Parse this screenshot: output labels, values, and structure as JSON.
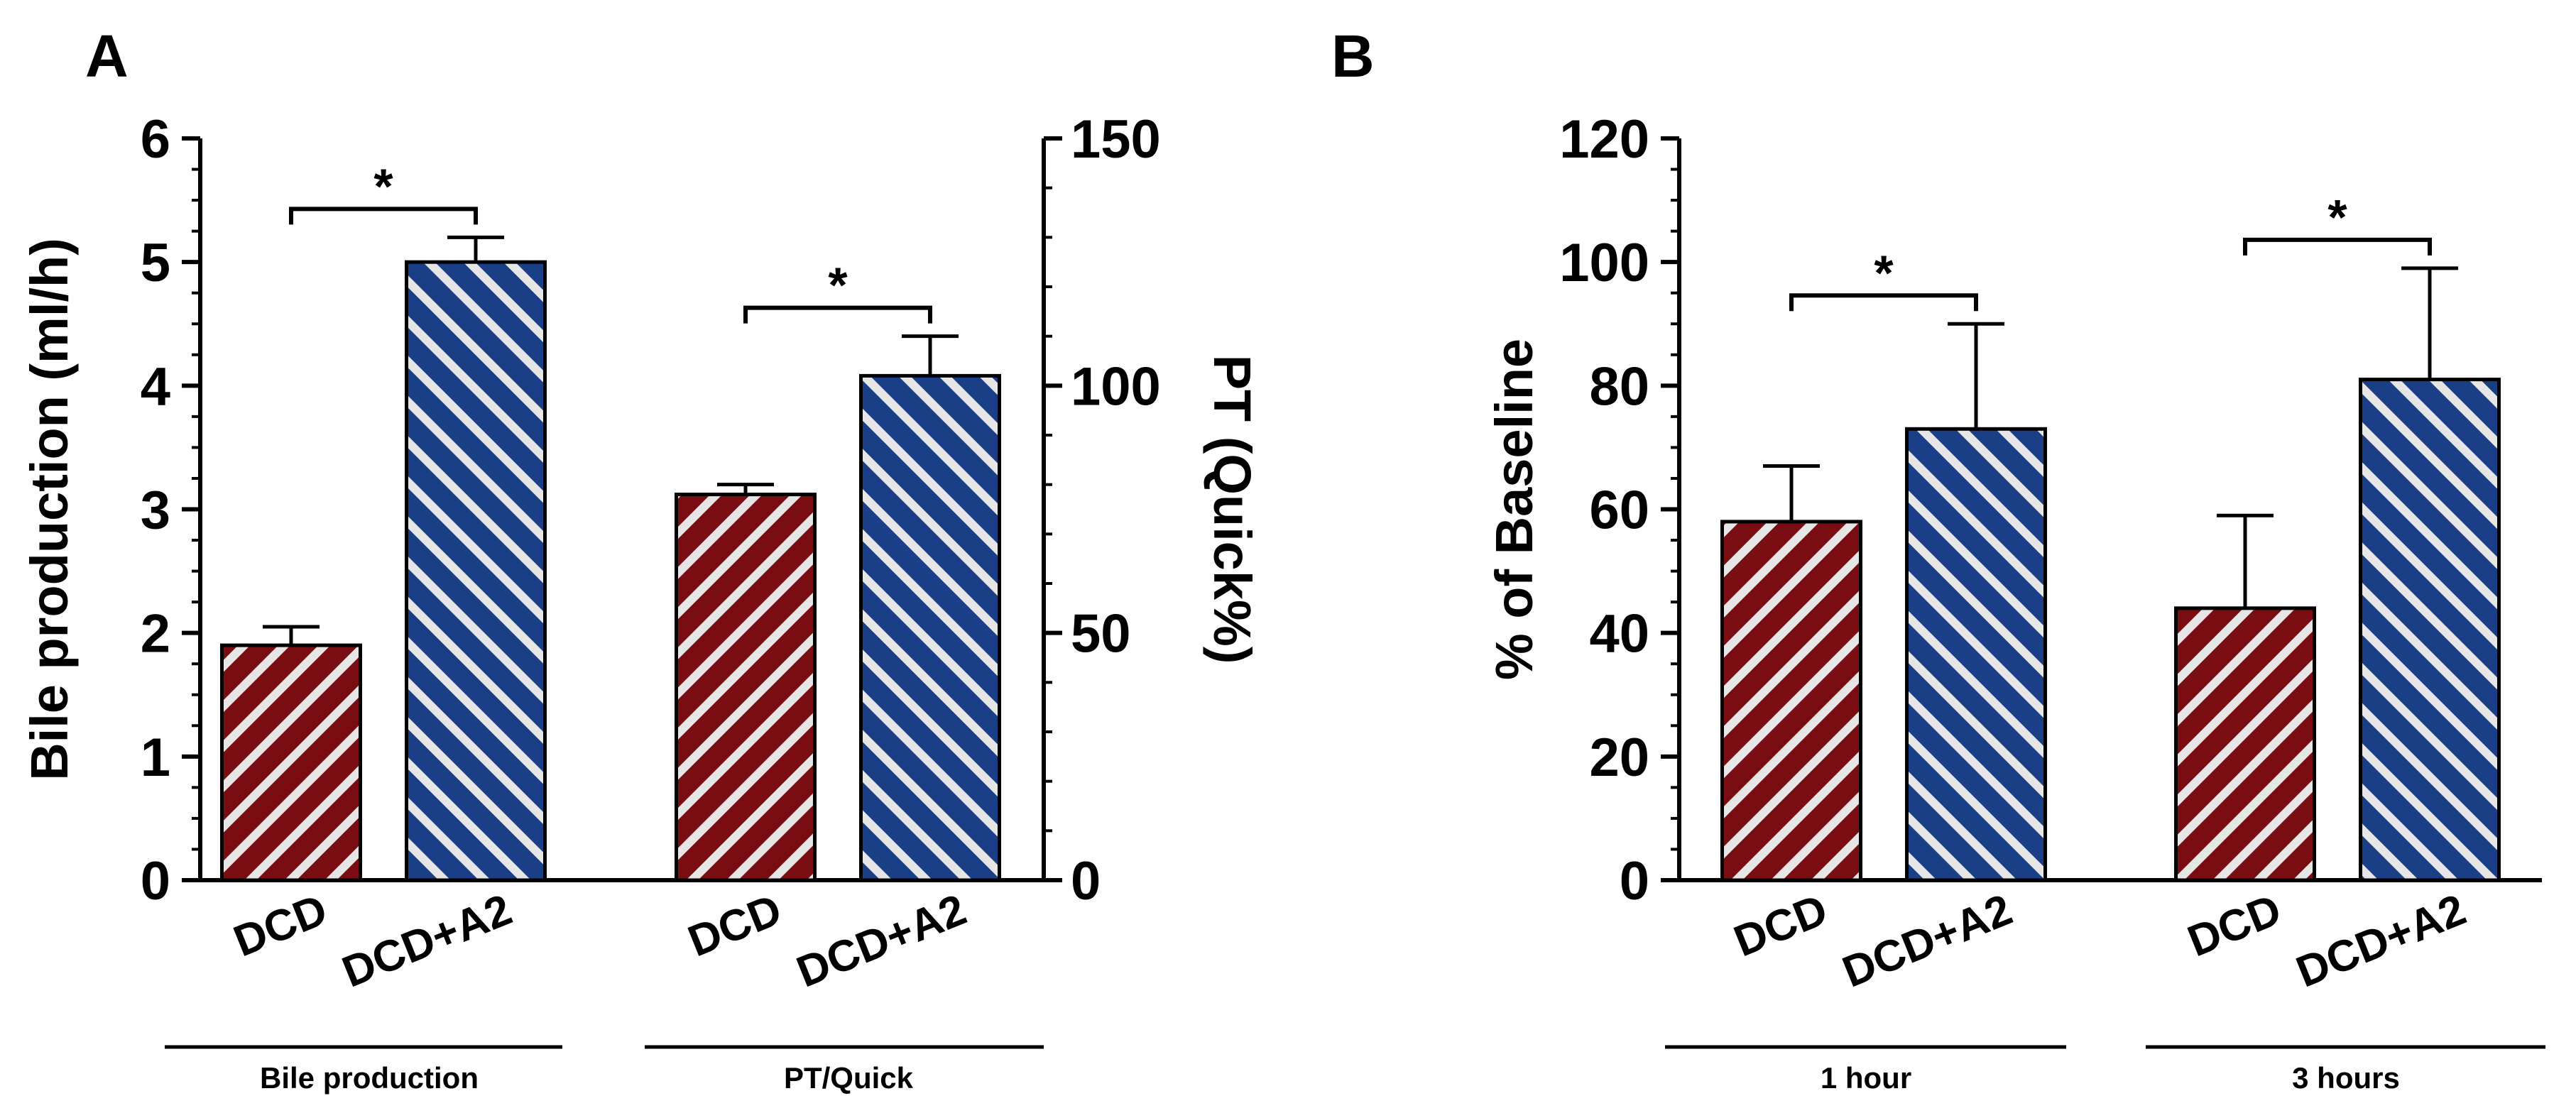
{
  "colors": {
    "dcd": "#7a0d12",
    "dcd_a2": "#1b3f86",
    "stripe": "#e6e6e6",
    "axis": "#000000"
  },
  "chart_data": [
    {
      "panel": "A",
      "type": "bar",
      "groups": [
        "Bile production",
        "PT/Quick"
      ],
      "categories": [
        "DCD",
        "DCD+A2"
      ],
      "ylabel": "Bile production (ml/h)",
      "ylim": [
        0,
        6
      ],
      "yticks": [
        "0",
        "1",
        "2",
        "3",
        "4",
        "5",
        "6"
      ],
      "ylabel_right": "PT (Quick%)",
      "ylim_right": [
        0,
        150
      ],
      "yticks_right": [
        "0",
        "50",
        "100",
        "150"
      ],
      "bars": [
        {
          "group": "Bile production",
          "category": "DCD",
          "value": 1.9,
          "error": 0.15,
          "axis": "left"
        },
        {
          "group": "Bile production",
          "category": "DCD+A2",
          "value": 5.0,
          "error": 0.2,
          "axis": "left"
        },
        {
          "group": "PT/Quick",
          "category": "DCD",
          "value": 78,
          "error": 2,
          "axis": "right"
        },
        {
          "group": "PT/Quick",
          "category": "DCD+A2",
          "value": 102,
          "error": 8,
          "axis": "right"
        }
      ],
      "significance": [
        {
          "label": "*",
          "group": "Bile production"
        },
        {
          "label": "*",
          "group": "PT/Quick"
        }
      ]
    },
    {
      "panel": "B",
      "type": "bar",
      "groups": [
        "1 hour",
        "3 hours"
      ],
      "categories": [
        "DCD",
        "DCD+A2"
      ],
      "ylabel": "% of Baseline",
      "ylim": [
        0,
        120
      ],
      "yticks": [
        "0",
        "20",
        "40",
        "60",
        "80",
        "100",
        "120"
      ],
      "bars": [
        {
          "group": "1 hour",
          "category": "DCD",
          "value": 58,
          "error": 9
        },
        {
          "group": "1 hour",
          "category": "DCD+A2",
          "value": 73,
          "error": 17
        },
        {
          "group": "3 hours",
          "category": "DCD",
          "value": 44,
          "error": 15
        },
        {
          "group": "3 hours",
          "category": "DCD+A2",
          "value": 81,
          "error": 18
        }
      ],
      "significance": [
        {
          "label": "*",
          "group": "1 hour"
        },
        {
          "label": "*",
          "group": "3 hours"
        }
      ]
    }
  ]
}
